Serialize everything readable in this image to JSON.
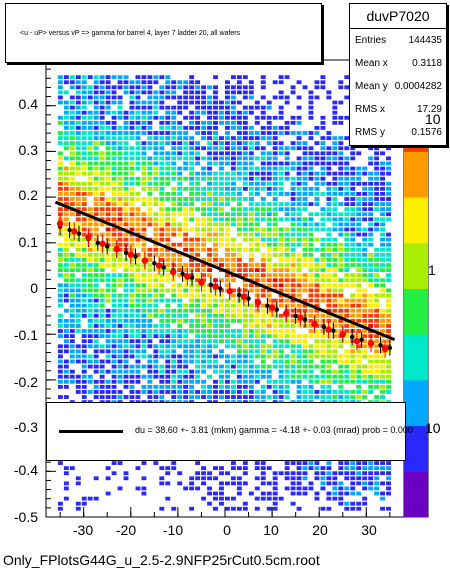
{
  "chart_data": {
    "type": "heatmap",
    "title": "<u - uP>       versus   vP =>  gamma for barrel 4, layer 7 ladder 20, all wafers",
    "xlabel": "",
    "ylabel": "",
    "xlim": [
      -38,
      38
    ],
    "ylim": [
      -0.5,
      0.5
    ],
    "x_ticks": [
      -30,
      -20,
      -10,
      0,
      10,
      20,
      30
    ],
    "y_ticks": [
      -0.5,
      -0.4,
      -0.3,
      -0.2,
      -0.1,
      0,
      0.1,
      0.2,
      0.3,
      0.4
    ],
    "y_tick_labels": [
      "-0.5",
      "-0.4",
      "-0.3",
      "-0.2",
      "-0.1",
      "0",
      "0.1",
      "0.2",
      "0.3",
      "0.4"
    ],
    "z_scale": "log",
    "z_ticks": [
      {
        "value": 1,
        "label": "1"
      },
      {
        "value": 10,
        "label": "10"
      },
      {
        "value": 0.1,
        "label": "10"
      }
    ],
    "stats": {
      "name": "duvP7020",
      "rows": [
        {
          "key": "Entries",
          "value": "144435"
        },
        {
          "key": "Mean x",
          "value": "0.3118"
        },
        {
          "key": "Mean y",
          "value": "0.0004282"
        },
        {
          "key": "RMS x",
          "value": "17.29"
        },
        {
          "key": "RMS y",
          "value": "0.1576"
        }
      ]
    },
    "fit": {
      "label": "du =    38.60 +-   3.81 (mkm) gamma =    -4.18 +-  0.03 (mrad) prob = 0.000",
      "intercept": 0.0386,
      "slope": -0.00418,
      "color": "#000000"
    },
    "profile_points": {
      "color": "#000000",
      "x": [
        -35,
        -33,
        -31,
        -29,
        -27,
        -25,
        -23,
        -21,
        -19,
        -17,
        -15,
        -13,
        -11,
        -9,
        -7,
        -5,
        -3,
        -1,
        1,
        3,
        5,
        7,
        9,
        11,
        13,
        15,
        17,
        19,
        21,
        23,
        25,
        27,
        29,
        31,
        33,
        35
      ],
      "y": [
        0.135,
        0.128,
        0.12,
        0.108,
        0.1,
        0.092,
        0.085,
        0.078,
        0.07,
        0.062,
        0.055,
        0.046,
        0.04,
        0.032,
        0.024,
        0.016,
        0.008,
        0.0,
        -0.006,
        -0.014,
        -0.022,
        -0.03,
        -0.038,
        -0.046,
        -0.054,
        -0.06,
        -0.068,
        -0.076,
        -0.084,
        -0.092,
        -0.1,
        -0.106,
        -0.112,
        -0.118,
        -0.124,
        -0.13
      ]
    },
    "fit_points": {
      "color": "#ff0000",
      "x": [
        -35,
        -32,
        -29,
        -26,
        -23,
        -20,
        -17,
        -14,
        -11,
        -8,
        -5,
        -2,
        1,
        4,
        7,
        10,
        13,
        16,
        19,
        22,
        25,
        28,
        31,
        34
      ],
      "y": [
        0.142,
        0.125,
        0.112,
        0.098,
        0.086,
        0.074,
        0.061,
        0.05,
        0.036,
        0.026,
        0.013,
        0.004,
        -0.006,
        -0.018,
        -0.03,
        -0.042,
        -0.055,
        -0.064,
        -0.078,
        -0.09,
        -0.1,
        -0.115,
        -0.12,
        -0.132
      ]
    },
    "palette": [
      "#6a00c0",
      "#2a28ff",
      "#00a8ff",
      "#00e8c8",
      "#22ee44",
      "#a8ee00",
      "#ffee00",
      "#ff9a00",
      "#ff3a00",
      "#e01000"
    ]
  },
  "footer": "Only_FPlotsG44G_u_2.5-2.9NFP25rCut0.5cm.root"
}
